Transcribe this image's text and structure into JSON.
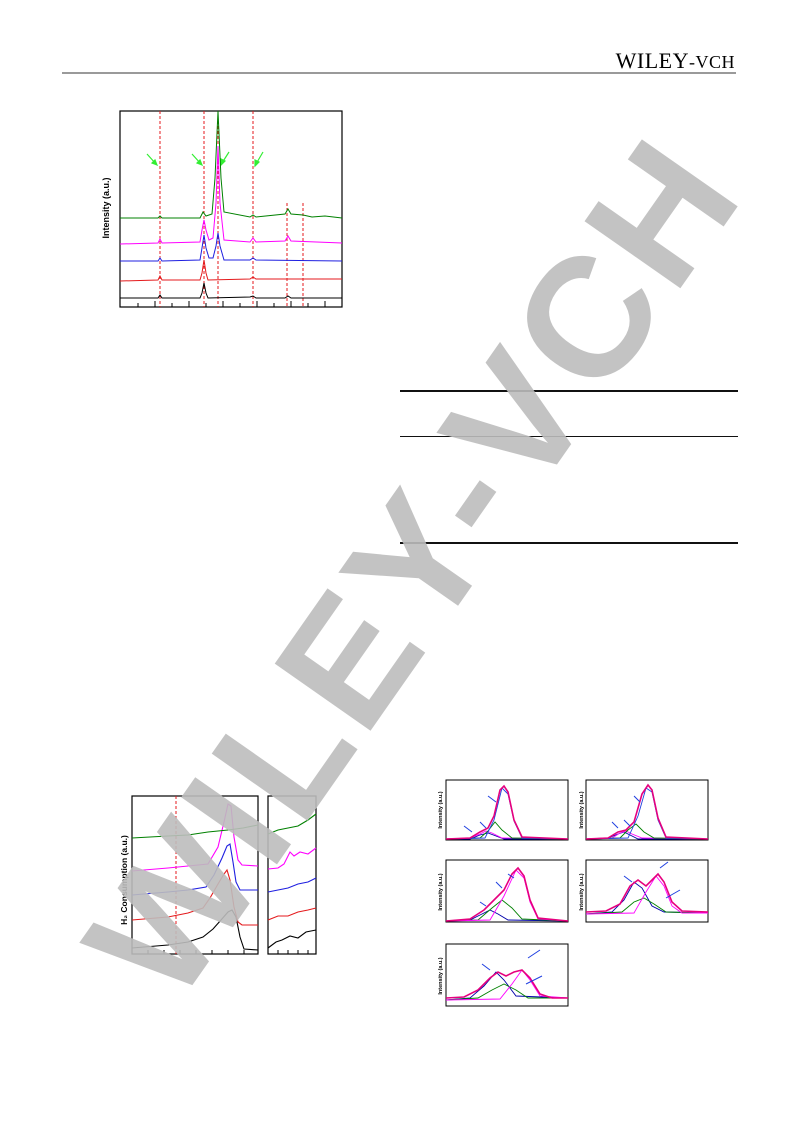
{
  "header": {
    "publisher_main": "Wiley",
    "publisher_suffix": "-VCH"
  },
  "watermark": {
    "text": "WILEY-VCH",
    "color": "#bdbdbd"
  },
  "figures": {
    "xrd": {
      "ylabel": "Intensity (a.u.)",
      "series_colors": [
        "#000000",
        "#e41a1c",
        "#1f1fe0",
        "#ff00ff",
        "#008000"
      ],
      "reference_line_color": "#e41a1c",
      "arrow_color": "#33ee33"
    },
    "h2tpr": {
      "ylabel": "H₂ Consumption (a.u.)",
      "series_colors": [
        "#000000",
        "#e41a1c",
        "#1f1fe0",
        "#ff00ff",
        "#008000"
      ]
    },
    "xps": {
      "ylabel": "Intensity (a.u.)",
      "panel_count": 5,
      "envelope_color": "#e6007e",
      "arrow_color": "#1f3fe0"
    }
  }
}
